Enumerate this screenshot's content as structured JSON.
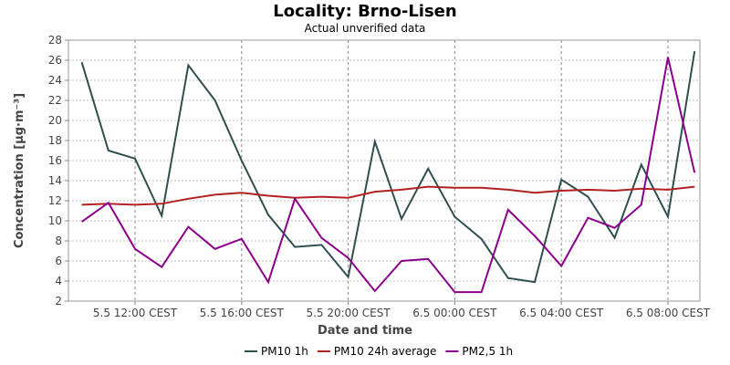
{
  "chart_data": {
    "type": "line",
    "title": "Locality: Brno-Lisen",
    "subtitle": "Actual unverified data",
    "xlabel": "Date and time",
    "ylabel": "Concentration [µg·m⁻³]",
    "ylim": [
      2,
      28
    ],
    "yticks": [
      2,
      4,
      6,
      8,
      10,
      12,
      14,
      16,
      18,
      20,
      22,
      24,
      26,
      28
    ],
    "x_start": "5.5 10:00 CEST",
    "x_step_hours": 1,
    "xlim_hours": [
      9.5,
      33.2
    ],
    "xticks": [
      {
        "hour": 12,
        "label": "5.5 12:00 CEST"
      },
      {
        "hour": 16,
        "label": "5.5 16:00 CEST"
      },
      {
        "hour": 20,
        "label": "5.5 20:00 CEST"
      },
      {
        "hour": 24,
        "label": "6.5 00:00 CEST"
      },
      {
        "hour": 28,
        "label": "6.5 04:00 CEST"
      },
      {
        "hour": 32,
        "label": "6.5 08:00 CEST"
      }
    ],
    "grid": true,
    "legend_position": "bottom",
    "series": [
      {
        "name": "PM10 1h",
        "color": "#2f4f4f",
        "values": [
          25.8,
          17.0,
          16.2,
          10.5,
          25.5,
          22.0,
          16.0,
          10.6,
          7.4,
          7.6,
          4.4,
          17.9,
          10.2,
          15.2,
          10.4,
          8.2,
          4.3,
          3.9,
          14.1,
          12.4,
          8.3,
          15.6,
          10.4,
          26.9
        ]
      },
      {
        "name": "PM10 24h average",
        "color": "#b22222",
        "values": [
          11.6,
          11.7,
          11.6,
          11.7,
          12.2,
          12.6,
          12.8,
          12.5,
          12.3,
          12.4,
          12.3,
          12.9,
          13.1,
          13.4,
          13.3,
          13.3,
          13.1,
          12.8,
          13.0,
          13.1,
          13.0,
          13.2,
          13.1,
          13.4
        ]
      },
      {
        "name": "PM2,5 1h",
        "color": "#8b008b",
        "values": [
          9.9,
          11.8,
          7.2,
          5.4,
          9.4,
          7.2,
          8.2,
          3.9,
          12.2,
          8.3,
          6.3,
          3.0,
          6.0,
          6.2,
          2.9,
          2.9,
          11.1,
          8.5,
          5.5,
          10.3,
          9.3,
          11.6,
          26.3,
          14.8
        ]
      }
    ]
  }
}
